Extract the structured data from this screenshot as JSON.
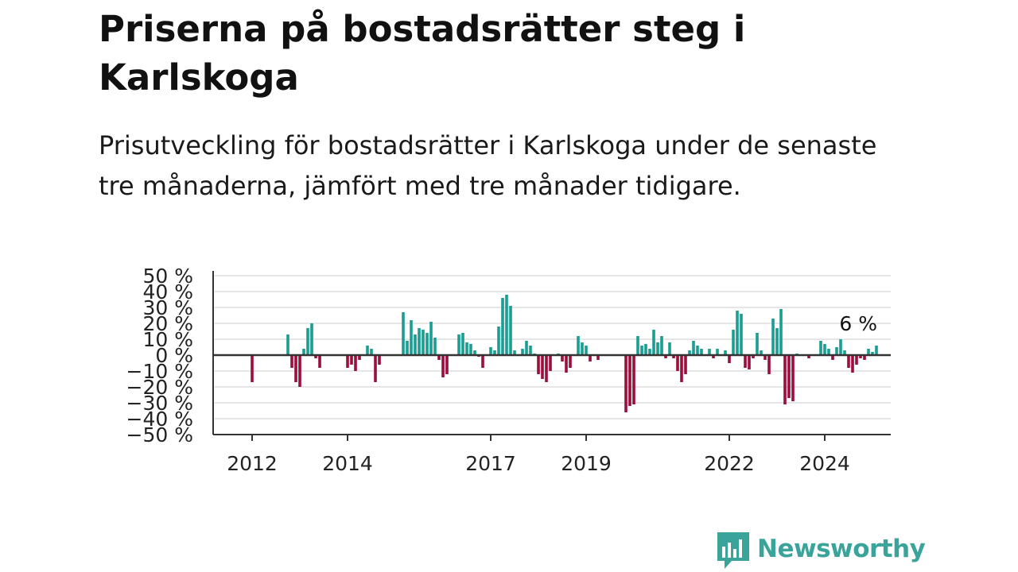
{
  "title": "Priserna på bostadsrätter steg i Karlskoga",
  "subtitle": "Prisutveckling för bostadsrätter i Karlskoga under de senaste tre månaderna, jämfört med tre månader tidigare.",
  "brand": {
    "name": "Newsworthy",
    "color": "#3aa49a",
    "icon": "newsworthy-logo-icon"
  },
  "colors": {
    "positive": "#1a9e93",
    "negative": "#9c0e3c",
    "grid": "#dddddd",
    "axis": "#333333"
  },
  "chart_data": {
    "type": "bar",
    "ylabel": "",
    "xlabel": "",
    "ylim": [
      -50,
      50
    ],
    "yticks": [
      50,
      40,
      30,
      20,
      10,
      0,
      -10,
      -20,
      -30,
      -40,
      -50
    ],
    "ytick_labels": [
      "50 %",
      "40 %",
      "30 %",
      "20 %",
      "10 %",
      "0 %",
      "−10 %",
      "−20 %",
      "−30 %",
      "−40 %",
      "−50 %"
    ],
    "xlim": [
      "2011-01",
      "2025-12"
    ],
    "xtick_labels": [
      {
        "label": "2012",
        "date": "2012-01"
      },
      {
        "label": "2014",
        "date": "2014-01"
      },
      {
        "label": "2017",
        "date": "2017-01"
      },
      {
        "label": "2019",
        "date": "2019-01"
      },
      {
        "label": "2022",
        "date": "2022-01"
      },
      {
        "label": "2024",
        "date": "2024-01"
      }
    ],
    "grid": true,
    "annotation": {
      "text": "6 %",
      "date": "2025-02",
      "value": 6
    },
    "series": [
      {
        "values": [
          {
            "date": "2012-01",
            "value": -17
          },
          {
            "date": "2012-10",
            "value": 13
          },
          {
            "date": "2012-11",
            "value": -8
          },
          {
            "date": "2012-12",
            "value": -17
          },
          {
            "date": "2013-01",
            "value": -20
          },
          {
            "date": "2013-02",
            "value": 4
          },
          {
            "date": "2013-03",
            "value": 17
          },
          {
            "date": "2013-04",
            "value": 20
          },
          {
            "date": "2013-05",
            "value": -2
          },
          {
            "date": "2013-06",
            "value": -8
          },
          {
            "date": "2014-01",
            "value": -8
          },
          {
            "date": "2014-02",
            "value": -6
          },
          {
            "date": "2014-03",
            "value": -10
          },
          {
            "date": "2014-04",
            "value": -3
          },
          {
            "date": "2014-06",
            "value": 6
          },
          {
            "date": "2014-07",
            "value": 4
          },
          {
            "date": "2014-08",
            "value": -17
          },
          {
            "date": "2014-09",
            "value": -6
          },
          {
            "date": "2015-03",
            "value": 27
          },
          {
            "date": "2015-04",
            "value": 9
          },
          {
            "date": "2015-05",
            "value": 22
          },
          {
            "date": "2015-06",
            "value": 13
          },
          {
            "date": "2015-07",
            "value": 17
          },
          {
            "date": "2015-08",
            "value": 16
          },
          {
            "date": "2015-09",
            "value": 14
          },
          {
            "date": "2015-10",
            "value": 21
          },
          {
            "date": "2015-11",
            "value": 11
          },
          {
            "date": "2015-12",
            "value": -3
          },
          {
            "date": "2016-01",
            "value": -14
          },
          {
            "date": "2016-02",
            "value": -12
          },
          {
            "date": "2016-05",
            "value": 13
          },
          {
            "date": "2016-06",
            "value": 14
          },
          {
            "date": "2016-07",
            "value": 8
          },
          {
            "date": "2016-08",
            "value": 7
          },
          {
            "date": "2016-09",
            "value": 3
          },
          {
            "date": "2016-10",
            "value": -1
          },
          {
            "date": "2016-11",
            "value": -8
          },
          {
            "date": "2017-01",
            "value": 5
          },
          {
            "date": "2017-02",
            "value": 3
          },
          {
            "date": "2017-03",
            "value": 18
          },
          {
            "date": "2017-04",
            "value": 36
          },
          {
            "date": "2017-05",
            "value": 38
          },
          {
            "date": "2017-06",
            "value": 31
          },
          {
            "date": "2017-07",
            "value": 3
          },
          {
            "date": "2017-09",
            "value": 4
          },
          {
            "date": "2017-10",
            "value": 9
          },
          {
            "date": "2017-11",
            "value": 6
          },
          {
            "date": "2017-12",
            "value": 1
          },
          {
            "date": "2018-01",
            "value": -12
          },
          {
            "date": "2018-02",
            "value": -15
          },
          {
            "date": "2018-03",
            "value": -17
          },
          {
            "date": "2018-04",
            "value": -10
          },
          {
            "date": "2018-06",
            "value": 1
          },
          {
            "date": "2018-07",
            "value": -4
          },
          {
            "date": "2018-08",
            "value": -11
          },
          {
            "date": "2018-09",
            "value": -8
          },
          {
            "date": "2018-11",
            "value": 12
          },
          {
            "date": "2018-12",
            "value": 8
          },
          {
            "date": "2019-01",
            "value": 6
          },
          {
            "date": "2019-02",
            "value": -4
          },
          {
            "date": "2019-04",
            "value": -3
          },
          {
            "date": "2019-11",
            "value": -36
          },
          {
            "date": "2019-12",
            "value": -32
          },
          {
            "date": "2020-01",
            "value": -31
          },
          {
            "date": "2020-02",
            "value": 12
          },
          {
            "date": "2020-03",
            "value": 6
          },
          {
            "date": "2020-04",
            "value": 7
          },
          {
            "date": "2020-05",
            "value": 4
          },
          {
            "date": "2020-06",
            "value": 16
          },
          {
            "date": "2020-07",
            "value": 8
          },
          {
            "date": "2020-08",
            "value": 12
          },
          {
            "date": "2020-09",
            "value": -2
          },
          {
            "date": "2020-10",
            "value": 8
          },
          {
            "date": "2020-11",
            "value": -2
          },
          {
            "date": "2020-12",
            "value": -10
          },
          {
            "date": "2021-01",
            "value": -17
          },
          {
            "date": "2021-02",
            "value": -12
          },
          {
            "date": "2021-03",
            "value": 3
          },
          {
            "date": "2021-04",
            "value": 9
          },
          {
            "date": "2021-05",
            "value": 6
          },
          {
            "date": "2021-06",
            "value": 4
          },
          {
            "date": "2021-08",
            "value": 4
          },
          {
            "date": "2021-09",
            "value": -2
          },
          {
            "date": "2021-10",
            "value": 4
          },
          {
            "date": "2021-12",
            "value": 3
          },
          {
            "date": "2022-01",
            "value": -5
          },
          {
            "date": "2022-02",
            "value": 16
          },
          {
            "date": "2022-03",
            "value": 28
          },
          {
            "date": "2022-04",
            "value": 26
          },
          {
            "date": "2022-05",
            "value": -8
          },
          {
            "date": "2022-06",
            "value": -9
          },
          {
            "date": "2022-07",
            "value": -2
          },
          {
            "date": "2022-08",
            "value": 14
          },
          {
            "date": "2022-09",
            "value": 3
          },
          {
            "date": "2022-10",
            "value": -3
          },
          {
            "date": "2022-11",
            "value": -12
          },
          {
            "date": "2022-12",
            "value": 23
          },
          {
            "date": "2023-01",
            "value": 17
          },
          {
            "date": "2023-02",
            "value": 29
          },
          {
            "date": "2023-03",
            "value": -31
          },
          {
            "date": "2023-04",
            "value": -27
          },
          {
            "date": "2023-05",
            "value": -29
          },
          {
            "date": "2023-06",
            "value": 1
          },
          {
            "date": "2023-09",
            "value": -2
          },
          {
            "date": "2023-12",
            "value": 9
          },
          {
            "date": "2024-01",
            "value": 7
          },
          {
            "date": "2024-02",
            "value": 4
          },
          {
            "date": "2024-03",
            "value": -3
          },
          {
            "date": "2024-04",
            "value": 5
          },
          {
            "date": "2024-05",
            "value": 10
          },
          {
            "date": "2024-06",
            "value": 3
          },
          {
            "date": "2024-07",
            "value": -8
          },
          {
            "date": "2024-08",
            "value": -11
          },
          {
            "date": "2024-09",
            "value": -6
          },
          {
            "date": "2024-10",
            "value": -2
          },
          {
            "date": "2024-11",
            "value": -3
          },
          {
            "date": "2024-12",
            "value": 4
          },
          {
            "date": "2025-01",
            "value": 2
          },
          {
            "date": "2025-02",
            "value": 6
          }
        ]
      }
    ]
  }
}
